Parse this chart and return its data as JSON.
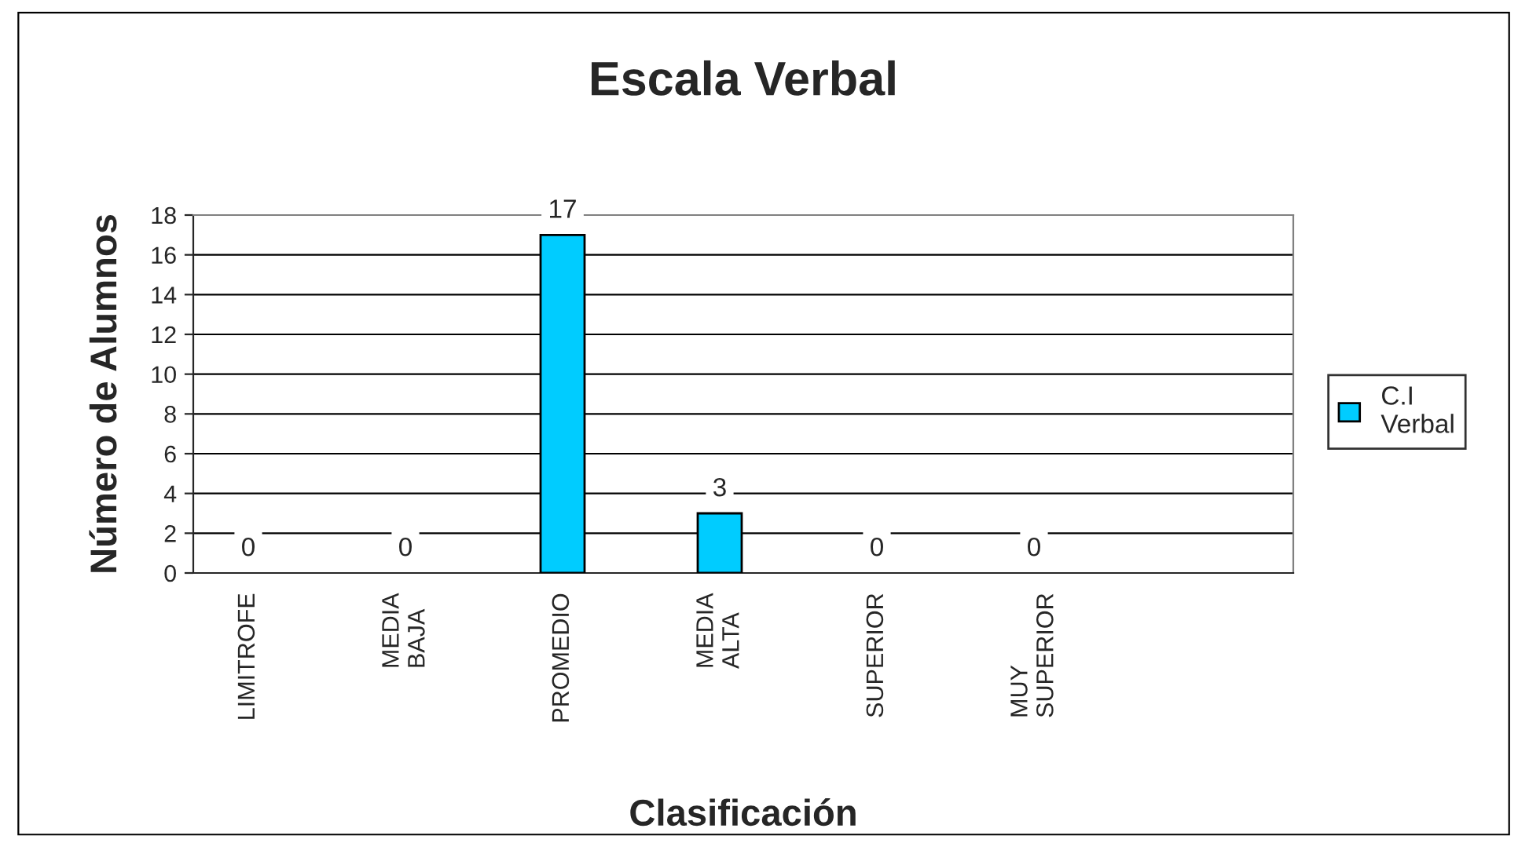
{
  "chart_data": {
    "type": "bar",
    "title": "Escala Verbal",
    "xlabel": "Clasificación",
    "ylabel": "Número de Alumnos",
    "categories": [
      "LIMITROFE",
      "MEDIA\nBAJA",
      "PROMEDIO",
      "MEDIA\nALTA",
      "SUPERIOR",
      "MUY\nSUPERIOR",
      null
    ],
    "series": [
      {
        "name": "C.I\nVerbal",
        "color": "#00ccff",
        "values": [
          0,
          0,
          17,
          3,
          0,
          0,
          null
        ]
      }
    ],
    "ylim": [
      0,
      18
    ],
    "yticks": [
      0,
      2,
      4,
      6,
      8,
      10,
      12,
      14,
      16,
      18
    ],
    "grid": "y",
    "legend": "right",
    "data_labels": true
  }
}
